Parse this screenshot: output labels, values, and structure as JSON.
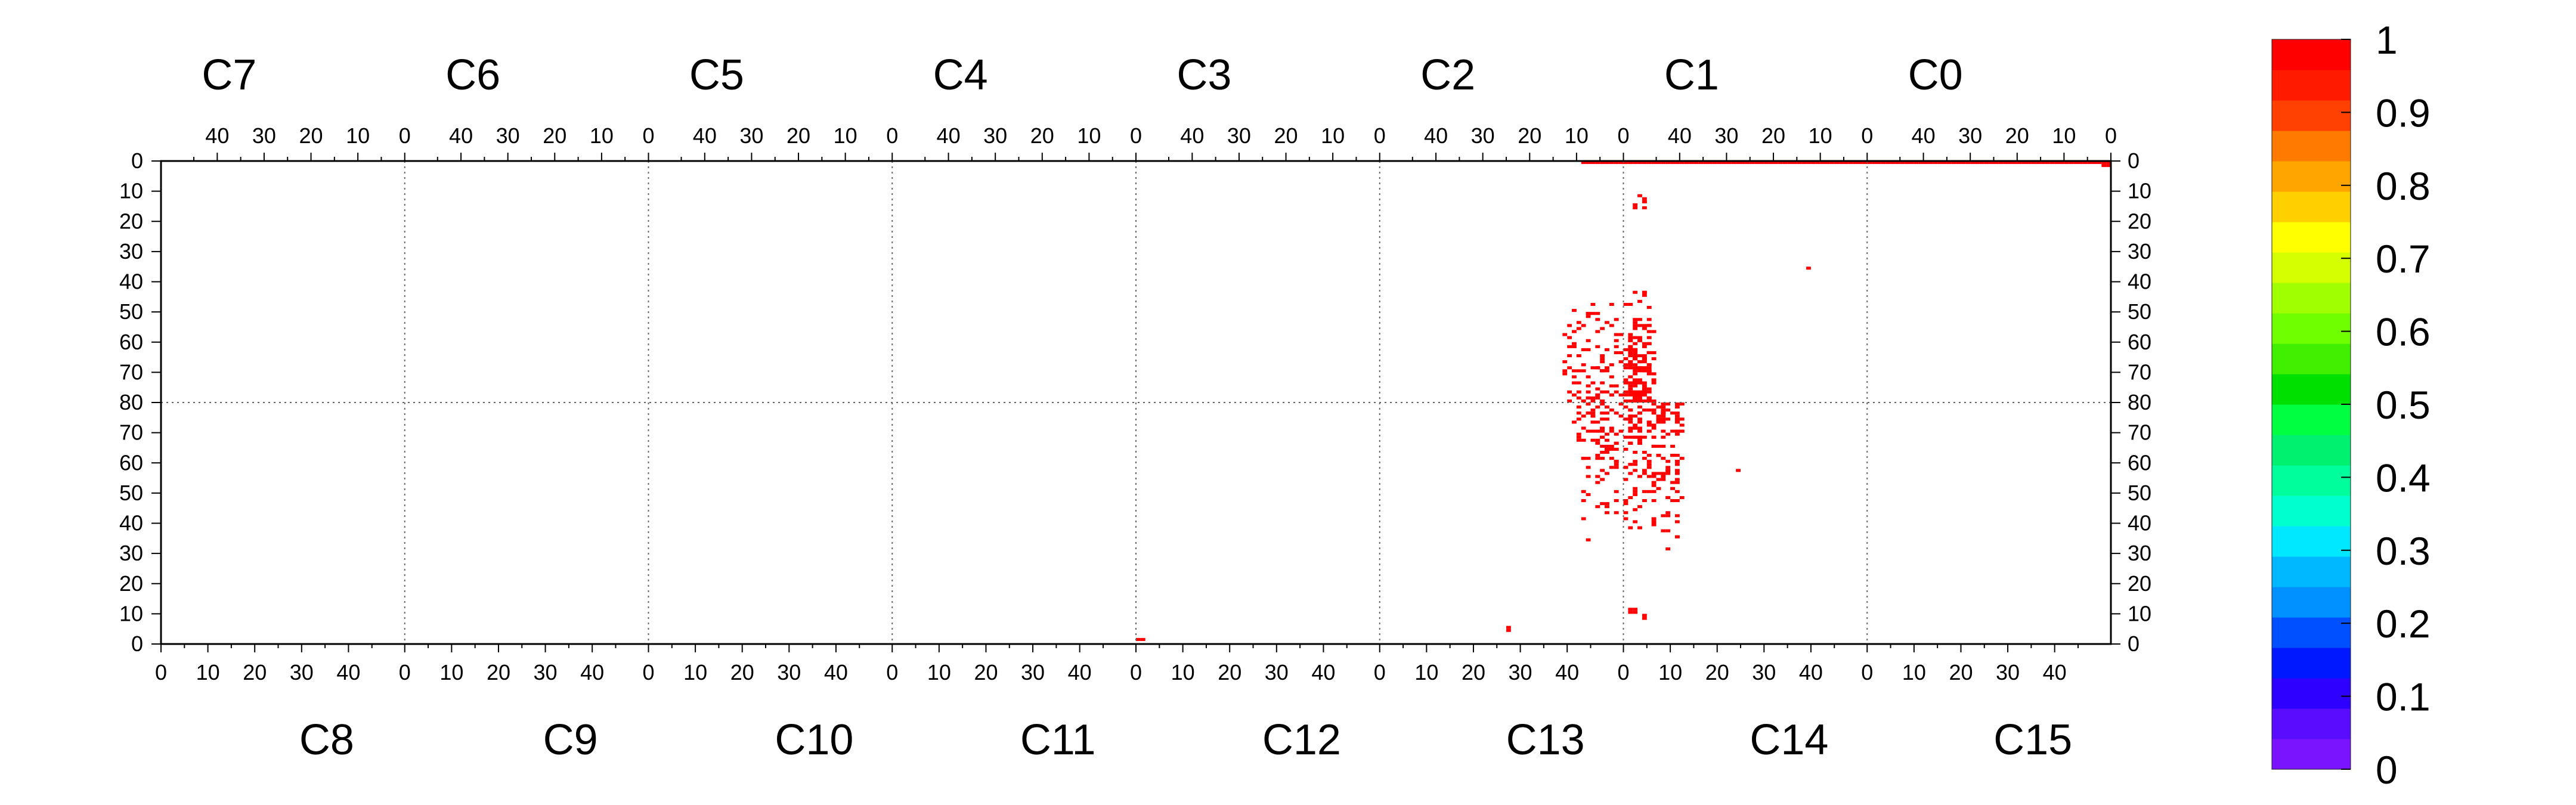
{
  "chart_data": {
    "type": "heatmap",
    "title": "",
    "xlabel": "",
    "ylabel": "",
    "grid": true,
    "legend": "colorbar-right",
    "top_chips": [
      "C7",
      "C6",
      "C5",
      "C4",
      "C3",
      "C2",
      "C1",
      "C0"
    ],
    "bottom_chips": [
      "C8",
      "C9",
      "C10",
      "C11",
      "C12",
      "C13",
      "C14",
      "C15"
    ],
    "col_tick_labels": [
      "0",
      "10",
      "20",
      "30",
      "40"
    ],
    "row_tick_labels_top": [
      "0",
      "10",
      "20",
      "30",
      "40",
      "50",
      "60",
      "70",
      "80"
    ],
    "row_tick_labels_bottom": [
      "80",
      "70",
      "60",
      "50",
      "40",
      "30",
      "20",
      "10",
      "0"
    ],
    "columns_per_chip": 52,
    "rows_per_chip": 80,
    "zlim": [
      0,
      1
    ],
    "colorbar": {
      "tick_labels": [
        "0",
        "0.1",
        "0.2",
        "0.3",
        "0.4",
        "0.5",
        "0.6",
        "0.7",
        "0.8",
        "0.9",
        "1"
      ],
      "colors": [
        "#7a14ff",
        "#5a0cff",
        "#2d00ff",
        "#0018ff",
        "#0050ff",
        "#0090ff",
        "#00b8ff",
        "#00e8ff",
        "#00ffcf",
        "#00ff9c",
        "#00f070",
        "#00ff40",
        "#00e000",
        "#40f000",
        "#70ff00",
        "#a0ff00",
        "#d4ff00",
        "#ffff00",
        "#ffd000",
        "#ffa500",
        "#ff7a00",
        "#ff4000",
        "#ff1a00",
        "#ff0000"
      ]
    },
    "hit_value": 1,
    "hit_color": "#ff0000",
    "hit_rows": [
      {
        "chip": "C0",
        "row": 0,
        "col_from": 0,
        "col_to": 51
      },
      {
        "chip": "C1",
        "row": 0,
        "col_from": 0,
        "col_to": 51
      },
      {
        "chip": "C2",
        "row": 0,
        "col_from": 0,
        "col_to": 8
      }
    ],
    "hit_clusters": [
      {
        "chip": "C1",
        "cols": [
          45,
          51
        ],
        "rows": [
          40,
          80
        ],
        "count": 170
      },
      {
        "chip": "C2",
        "cols": [
          0,
          12
        ],
        "rows": [
          44,
          80
        ],
        "count": 95
      },
      {
        "chip": "C14",
        "cols": [
          0,
          12
        ],
        "rows": [
          30,
          80
        ],
        "count": 190
      },
      {
        "chip": "C13",
        "cols": [
          42,
          51
        ],
        "rows": [
          32,
          80
        ],
        "count": 95
      },
      {
        "chip": "C1",
        "cols": [
          46,
          49
        ],
        "rows": [
          9,
          16
        ],
        "count": 7
      },
      {
        "chip": "C14",
        "cols": [
          0,
          4
        ],
        "rows": [
          7,
          11
        ],
        "count": 6
      }
    ],
    "hits": [
      {
        "chip": "C0",
        "col": 0,
        "row": 1
      },
      {
        "chip": "C0",
        "col": 1,
        "row": 1
      },
      {
        "chip": "C1",
        "col": 12,
        "row": 35
      },
      {
        "chip": "C14",
        "col": 24,
        "row": 57
      },
      {
        "chip": "C12",
        "col": 0,
        "row": 1
      },
      {
        "chip": "C12",
        "col": 1,
        "row": 1
      },
      {
        "chip": "C13",
        "col": 27,
        "row": 4
      },
      {
        "chip": "C13",
        "col": 27,
        "row": 5
      },
      {
        "chip": "C14",
        "col": 11,
        "row": 40
      },
      {
        "chip": "C13",
        "col": 41,
        "row": 73
      }
    ]
  }
}
